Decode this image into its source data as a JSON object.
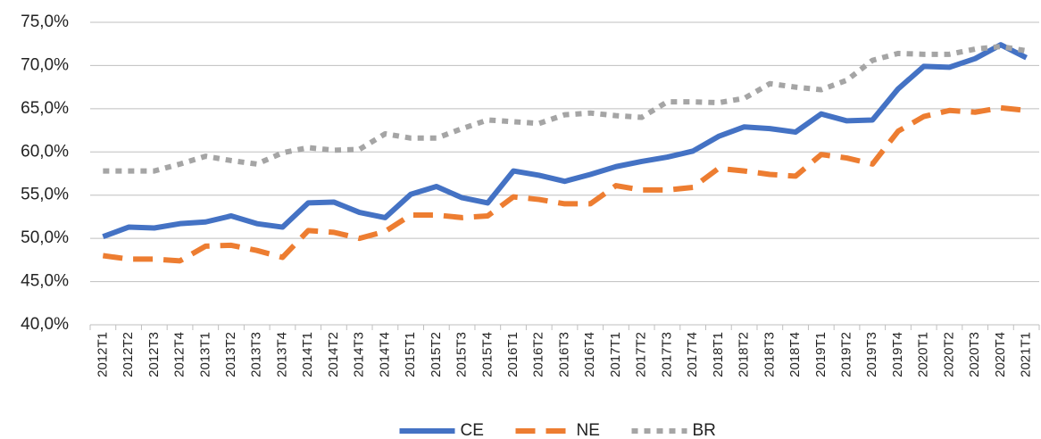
{
  "chart_data": {
    "type": "line",
    "categories": [
      "2012T1",
      "2012T2",
      "2012T3",
      "2012T4",
      "2013T1",
      "2013T2",
      "2013T3",
      "2013T4",
      "2014T1",
      "2014T2",
      "2014T3",
      "2014T4",
      "2015T1",
      "2015T2",
      "2015T3",
      "2015T4",
      "2016T1",
      "2016T2",
      "2016T3",
      "2016T4",
      "2017T1",
      "2017T2",
      "2017T3",
      "2017T4",
      "2018T1",
      "2018T2",
      "2018T3",
      "2018T4",
      "2019T1",
      "2019T2",
      "2019T3",
      "2019T4",
      "2020T1",
      "2020T2",
      "2020T3",
      "2020T4",
      "2021T1"
    ],
    "series": [
      {
        "name": "CE",
        "color": "#4472c4",
        "style": "solid",
        "values": [
          50.2,
          51.3,
          51.2,
          51.7,
          51.9,
          52.6,
          51.7,
          51.3,
          54.1,
          54.2,
          53.0,
          52.4,
          55.1,
          56.0,
          54.7,
          54.1,
          57.8,
          57.3,
          56.6,
          57.4,
          58.3,
          58.9,
          59.4,
          60.1,
          61.8,
          62.9,
          62.7,
          62.3,
          64.4,
          63.6,
          63.7,
          67.3,
          69.9,
          69.8,
          70.8,
          72.4,
          70.9
        ]
      },
      {
        "name": "NE",
        "color": "#ed7d31",
        "style": "dashed",
        "values": [
          48.0,
          47.6,
          47.6,
          47.4,
          49.1,
          49.2,
          48.6,
          47.8,
          50.9,
          50.7,
          50.0,
          50.8,
          52.7,
          52.7,
          52.4,
          52.6,
          54.8,
          54.5,
          54.0,
          54.0,
          56.1,
          55.6,
          55.6,
          55.9,
          58.1,
          57.8,
          57.4,
          57.2,
          59.7,
          59.3,
          58.6,
          62.4,
          64.1,
          64.8,
          64.6,
          65.1,
          64.8
        ]
      },
      {
        "name": "BR",
        "color": "#a5a5a5",
        "style": "dotted",
        "values": [
          57.8,
          57.8,
          57.8,
          58.6,
          59.5,
          59.0,
          58.6,
          59.9,
          60.5,
          60.2,
          60.3,
          62.1,
          61.6,
          61.6,
          62.7,
          63.7,
          63.5,
          63.3,
          64.3,
          64.5,
          64.2,
          64.0,
          65.8,
          65.8,
          65.7,
          66.2,
          67.9,
          67.5,
          67.2,
          68.3,
          70.6,
          71.4,
          71.3,
          71.3,
          71.9,
          72.2,
          71.7
        ]
      }
    ],
    "ylim": [
      40,
      75
    ],
    "yticks": [
      {
        "value": 40,
        "label": "40,0%"
      },
      {
        "value": 45,
        "label": "45,0%"
      },
      {
        "value": 50,
        "label": "50,0%"
      },
      {
        "value": 55,
        "label": "55,0%"
      },
      {
        "value": 60,
        "label": "60,0%"
      },
      {
        "value": 65,
        "label": "65,0%"
      },
      {
        "value": 70,
        "label": "70,0%"
      },
      {
        "value": 75,
        "label": "75,0%"
      }
    ],
    "grid": true,
    "legend": "bottom"
  }
}
